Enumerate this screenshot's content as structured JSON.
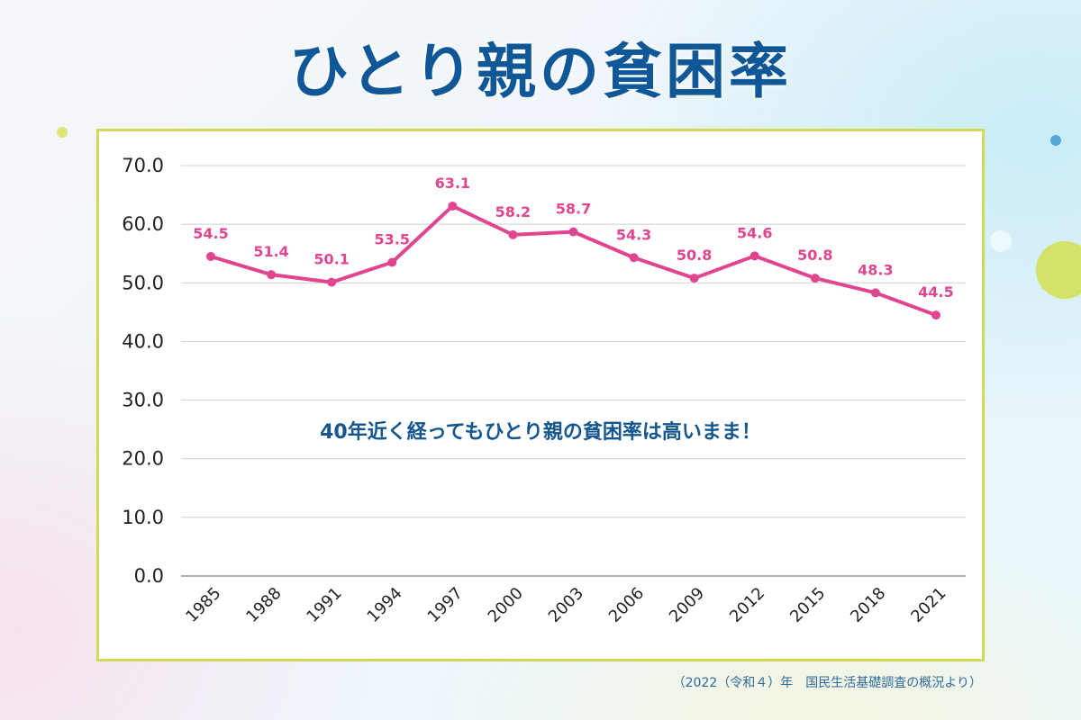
{
  "title": "ひとり親の貧困率",
  "source_note": "（2022（令和４）年　国民生活基礎調査の概況より）",
  "colors": {
    "title": "#0f5797",
    "line": "#e0468f",
    "frame": "#cfd95a",
    "annotation": "#14568e",
    "source": "#2e6a9e"
  },
  "chart_data": {
    "type": "line",
    "title": "ひとり親の貧困率",
    "xlabel": "",
    "ylabel": "",
    "categories": [
      "1985",
      "1988",
      "1991",
      "1994",
      "1997",
      "2000",
      "2003",
      "2006",
      "2009",
      "2012",
      "2015",
      "2018",
      "2021"
    ],
    "series": [
      {
        "name": "ひとり親の貧困率",
        "values": [
          54.5,
          51.4,
          50.1,
          53.5,
          63.1,
          58.2,
          58.7,
          54.3,
          50.8,
          54.6,
          50.8,
          48.3,
          44.5
        ],
        "labels": [
          "54.5",
          "51.4",
          "50.1",
          "53.5",
          "63.1",
          "58.2",
          "58.7",
          "54.3",
          "50.8",
          "54.6",
          "50.8",
          "48.3",
          "44.5"
        ]
      }
    ],
    "ylim": [
      0,
      70
    ],
    "yticks": [
      "0.0",
      "10.0",
      "20.0",
      "30.0",
      "40.0",
      "50.0",
      "60.0",
      "70.0"
    ],
    "ytick_values": [
      0,
      10,
      20,
      30,
      40,
      50,
      60,
      70
    ],
    "grid": true,
    "legend": "none",
    "annotation": "40年近く経ってもひとり親の貧困率は高いまま！"
  }
}
